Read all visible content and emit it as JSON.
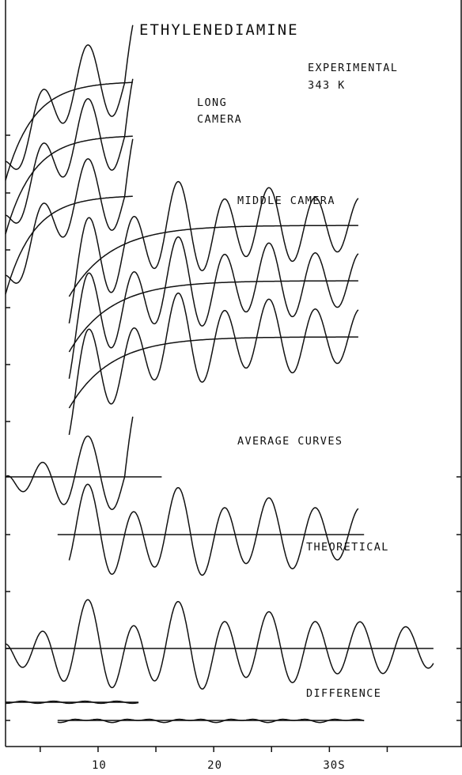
{
  "chart_data": {
    "type": "line",
    "title": "ETHYLENEDIAMINE",
    "xlabel": "",
    "ylabel": "",
    "x_unit": "S",
    "xlim": [
      2,
      39
    ],
    "x_ticks": [
      {
        "value": 5,
        "label": ""
      },
      {
        "value": 10,
        "label": "10"
      },
      {
        "value": 15,
        "label": ""
      },
      {
        "value": 20,
        "label": "20"
      },
      {
        "value": 25,
        "label": ""
      },
      {
        "value": 30,
        "label": "30"
      },
      {
        "value": 35,
        "label": ""
      }
    ],
    "annotations": {
      "experimental": "EXPERIMENTAL",
      "temperature": "343 K",
      "long_camera_1": "LONG",
      "long_camera_2": "CAMERA",
      "middle_camera": "MIDDLE CAMERA",
      "average_curves": "AVERAGE CURVES",
      "theoretical": "THEORETICAL",
      "difference": "DIFFERENCE"
    },
    "groups": [
      {
        "label": "LONG CAMERA",
        "curves": 3,
        "s_range": [
          2,
          13
        ]
      },
      {
        "label": "MIDDLE CAMERA",
        "curves": 3,
        "s_range": [
          7.5,
          32.5
        ]
      },
      {
        "label": "AVERAGE CURVES",
        "curves": 2,
        "s_ranges": [
          [
            2,
            15.5
          ],
          [
            6.5,
            33
          ]
        ]
      },
      {
        "label": "THEORETICAL",
        "curves": 1,
        "s_range": [
          2,
          39
        ]
      },
      {
        "label": "DIFFERENCE",
        "curves": 2,
        "s_ranges": [
          [
            2,
            13.5
          ],
          [
            6.5,
            33
          ]
        ]
      }
    ],
    "grid": false
  }
}
